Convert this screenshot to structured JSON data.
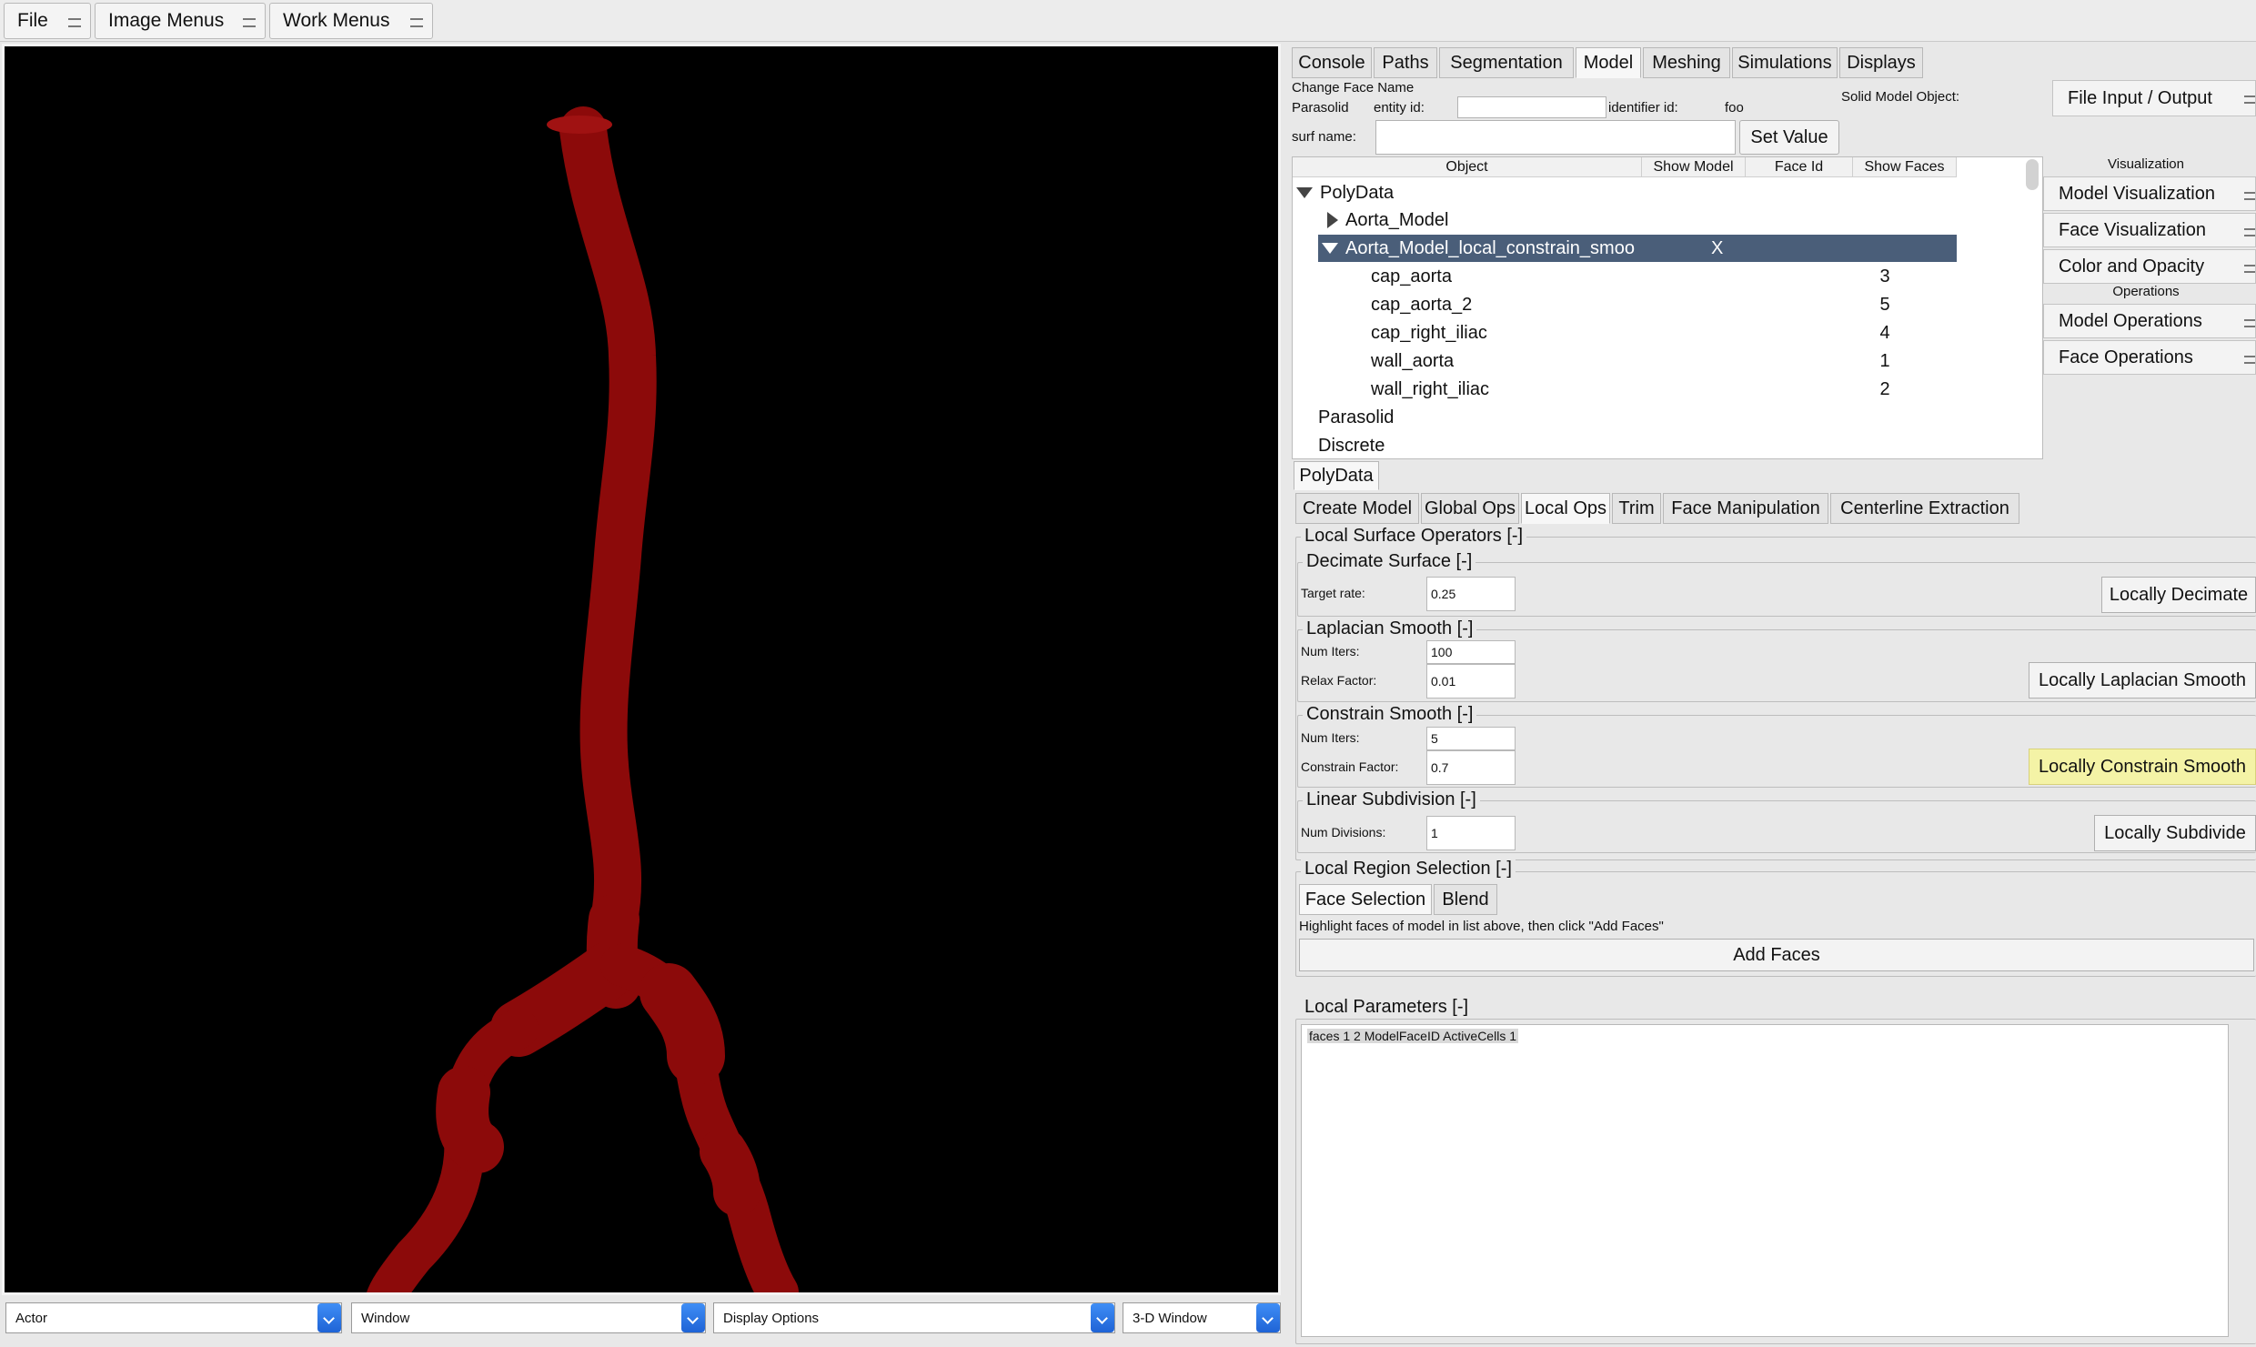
{
  "menubar": {
    "items": [
      "File",
      "Image Menus",
      "Work Menus"
    ]
  },
  "bottom_bar": {
    "selects": [
      "Actor",
      "Window",
      "Display Options",
      "3-D Window"
    ]
  },
  "main_tabs": [
    "Console",
    "Paths",
    "Segmentation",
    "Model",
    "Meshing",
    "Simulations",
    "Displays"
  ],
  "change_face": {
    "title": "Change Face Name",
    "parasolid_label": "Parasolid",
    "entity_label": "entity id:",
    "identifier_label": "identifier id:",
    "identifier_value": "foo",
    "solid_model_label": "Solid Model Object:",
    "surf_label": "surf name:",
    "set_value": "Set Value"
  },
  "right_panel": {
    "file_io": "File Input / Output",
    "visualization_header": "Visualization",
    "model_visualization": "Model Visualization",
    "face_visualization": "Face Visualization",
    "color_opacity": "Color and Opacity",
    "operations_header": "Operations",
    "model_operations": "Model Operations",
    "face_operations": "Face Operations"
  },
  "tree": {
    "columns": [
      "Object",
      "Show Model",
      "Face Id",
      "Show Faces"
    ],
    "root": "PolyData",
    "aorta_model": "Aorta_Model",
    "selected_model": "Aorta_Model_local_constrain_smoo",
    "selected_show": "X",
    "faces": [
      {
        "name": "cap_aorta",
        "id": "3"
      },
      {
        "name": "cap_aorta_2",
        "id": "5"
      },
      {
        "name": "cap_right_iliac",
        "id": "4"
      },
      {
        "name": "wall_aorta",
        "id": "1"
      },
      {
        "name": "wall_right_iliac",
        "id": "2"
      }
    ],
    "parasolid": "Parasolid",
    "discrete": "Discrete"
  },
  "sub_tab": "PolyData",
  "ops_tabs": [
    "Create Model",
    "Global Ops",
    "Local Ops",
    "Trim",
    "Face Manipulation",
    "Centerline Extraction"
  ],
  "local_ops": {
    "section_title": "Local Surface Operators [-]",
    "decimate": {
      "title": "Decimate Surface [-]",
      "target_label": "Target rate:",
      "target_value": "0.25",
      "button": "Locally Decimate"
    },
    "laplacian": {
      "title": "Laplacian Smooth [-]",
      "iters_label": "Num Iters:",
      "iters_value": "100",
      "relax_label": "Relax Factor:",
      "relax_value": "0.01",
      "button": "Locally Laplacian Smooth"
    },
    "constrain": {
      "title": "Constrain Smooth [-]",
      "iters_label": "Num Iters:",
      "iters_value": "5",
      "factor_label": "Constrain Factor:",
      "factor_value": "0.7",
      "button": "Locally Constrain Smooth"
    },
    "subdivision": {
      "title": "Linear Subdivision [-]",
      "div_label": "Num Divisions:",
      "div_value": "1",
      "button": "Locally Subdivide"
    },
    "region": {
      "title": "Local Region Selection [-]",
      "tabs": [
        "Face Selection",
        "Blend"
      ],
      "hint": "Highlight faces of model in list above, then click \"Add Faces\"",
      "add_faces": "Add Faces"
    },
    "params": {
      "title": "Local Parameters [-]",
      "text": "faces 1 2 ModelFaceID ActiveCells 1"
    }
  },
  "colors": {
    "vessel": "#8c0a0a",
    "highlight": "#f4f3a6",
    "selection": "#4a5e79"
  }
}
